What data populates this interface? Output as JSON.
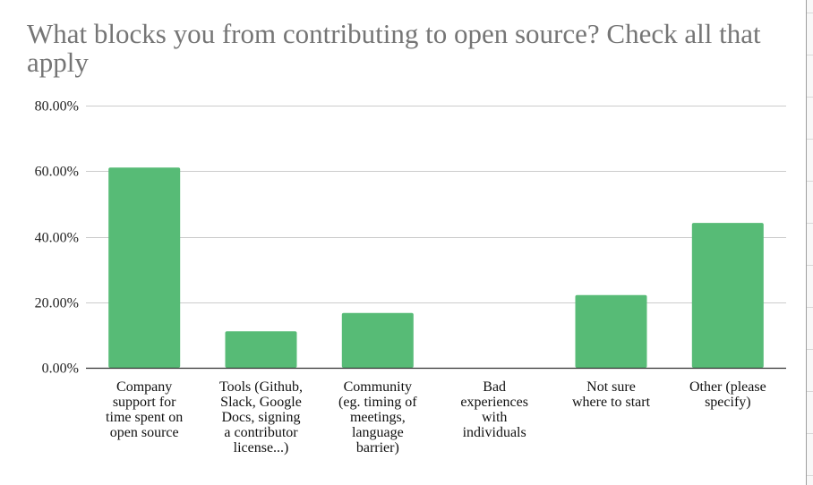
{
  "colors": {
    "bar": "#57bb76",
    "grid": "#cccccc",
    "axis": "#333333",
    "title": "#757575"
  },
  "chart_data": {
    "type": "bar",
    "title": "What blocks you from contributing to open source? Check all that apply",
    "categories": [
      "Company support for time spent on open source",
      "Tools (Github, Slack, Google Docs, signing a contributor license...)",
      "Community (eg. timing of meetings, language barrier)",
      "Bad experiences with individuals",
      "Not sure where to start",
      "Other (please specify)"
    ],
    "category_lines": [
      [
        "Company",
        "support for",
        "time spent on",
        "open source"
      ],
      [
        "Tools (Github,",
        "Slack, Google",
        "Docs, signing",
        "a contributor",
        "license...)"
      ],
      [
        "Community",
        "(eg. timing of",
        "meetings,",
        "language",
        "barrier)"
      ],
      [
        "Bad",
        "experiences",
        "with",
        "individuals"
      ],
      [
        "Not sure",
        "where to start"
      ],
      [
        "Other (please",
        "specify)"
      ]
    ],
    "values": [
      61.1,
      11.1,
      16.7,
      0.0,
      22.2,
      44.2
    ],
    "ylim": [
      0,
      80
    ],
    "yticks": [
      0,
      20,
      40,
      60,
      80
    ],
    "ytick_labels": [
      "0.00%",
      "20.00%",
      "40.00%",
      "60.00%",
      "80.00%"
    ],
    "xlabel": "",
    "ylabel": "",
    "grid": true,
    "legend": "none"
  }
}
